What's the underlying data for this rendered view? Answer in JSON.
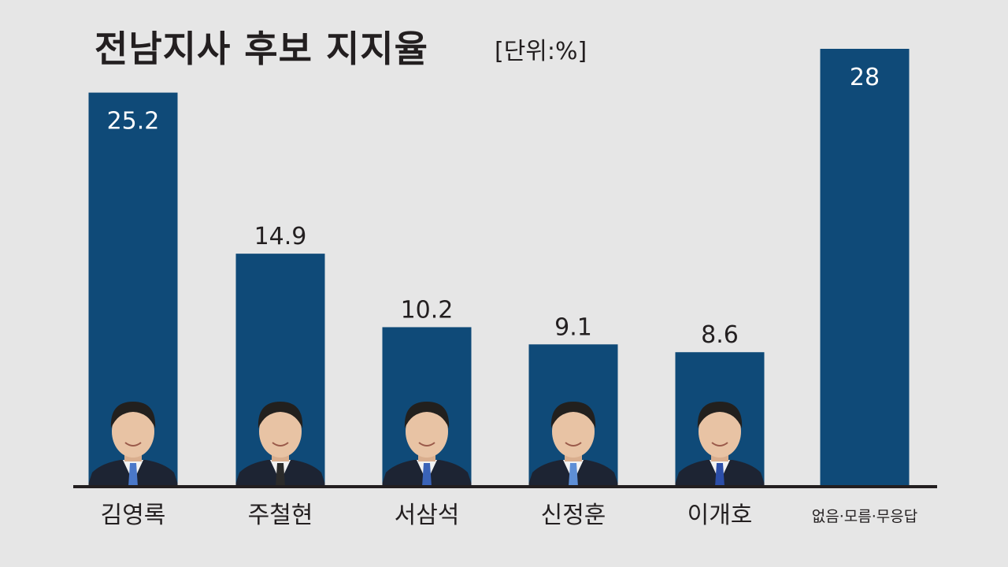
{
  "chart_data": {
    "type": "bar",
    "title": "전남지사 후보 지지율",
    "unit_label": "[단위:%]",
    "categories": [
      "김영록",
      "주철현",
      "서삼석",
      "신정훈",
      "이개호",
      "없음·모름·무응답"
    ],
    "values": [
      25.2,
      14.9,
      10.2,
      9.1,
      8.6,
      28
    ],
    "value_labels": [
      "25.2",
      "14.9",
      "10.2",
      "9.1",
      "8.6",
      "28"
    ],
    "ylim": [
      0,
      28
    ],
    "grid": false,
    "legend": "none",
    "bar_color": "#0f4a78",
    "candidate_photos": [
      "candidate-photo-1",
      "candidate-photo-2",
      "candidate-photo-3",
      "candidate-photo-4",
      "candidate-photo-5"
    ]
  }
}
